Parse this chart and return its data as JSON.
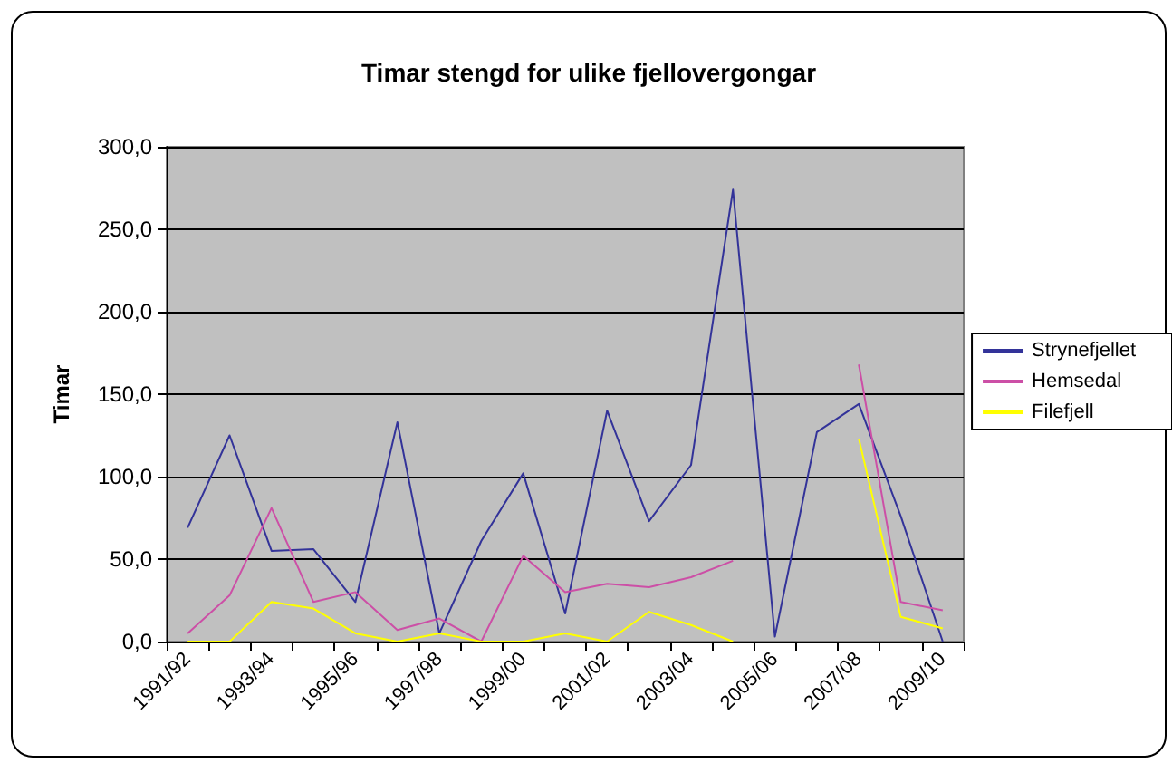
{
  "chart_data": {
    "type": "line",
    "title": "Timar stengd for ulike fjellovergongar",
    "ylabel": "Timar",
    "categories": [
      "1991/92",
      null,
      "1993/94",
      null,
      "1995/96",
      null,
      "1997/98",
      null,
      "1999/00",
      null,
      "2001/02",
      null,
      "2003/04",
      null,
      "2005/06",
      null,
      "2007/08",
      null,
      "2009/10"
    ],
    "series": [
      {
        "name": "Strynefjellet",
        "color": "#333399",
        "values": [
          69,
          125,
          55,
          56,
          24,
          133,
          5,
          61,
          102,
          17,
          140,
          73,
          107,
          274,
          3,
          127,
          144,
          76,
          0
        ]
      },
      {
        "name": "Hemsedal",
        "color": "#cc4fa6",
        "values": [
          5,
          28,
          81,
          24,
          30,
          7,
          14,
          0,
          52,
          30,
          35,
          33,
          39,
          49,
          null,
          null,
          168,
          24,
          19
        ]
      },
      {
        "name": "Filefjell",
        "color": "#ffff00",
        "values": [
          0,
          0,
          24,
          20,
          5,
          0,
          5,
          0,
          0,
          5,
          0,
          18,
          10,
          0,
          null,
          null,
          123,
          15,
          8
        ]
      }
    ],
    "ylim": [
      0,
      300
    ],
    "yticks": [
      {
        "value": 0,
        "label": "0,0"
      },
      {
        "value": 50,
        "label": "50,0"
      },
      {
        "value": 100,
        "label": "100,0"
      },
      {
        "value": 150,
        "label": "150,0"
      },
      {
        "value": 200,
        "label": "200,0"
      },
      {
        "value": 250,
        "label": "250,0"
      },
      {
        "value": 300,
        "label": "300,0"
      }
    ],
    "grid": "y",
    "legend": "right",
    "marker": "none",
    "line_style": "solid"
  }
}
